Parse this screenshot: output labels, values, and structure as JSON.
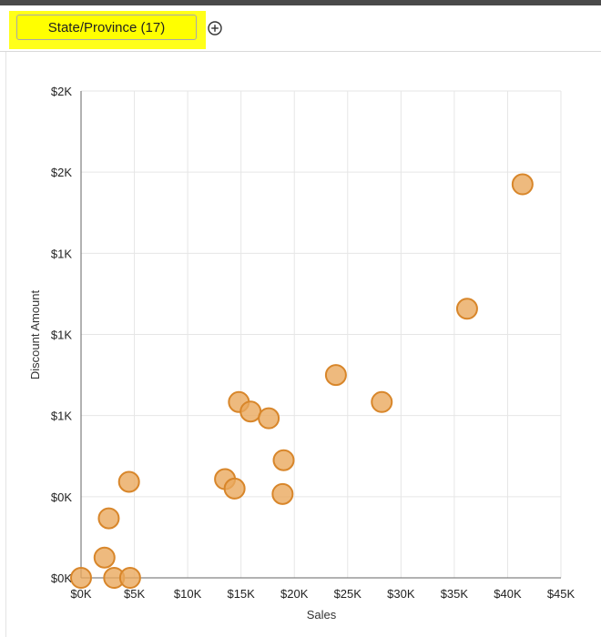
{
  "filter": {
    "pill_label": "State/Province (17)",
    "add_icon": "plus-circle-icon"
  },
  "colors": {
    "point_fill": "#eaa95e",
    "point_stroke": "#d8862a",
    "highlight": "#ffff00"
  },
  "chart_data": {
    "type": "scatter",
    "xlabel": "Sales",
    "ylabel": "Discount Amount",
    "xlim": [
      0,
      45000
    ],
    "ylim": [
      0,
      1800
    ],
    "x_ticks": [
      {
        "value": 0,
        "label": "$0K"
      },
      {
        "value": 5000,
        "label": "$5K"
      },
      {
        "value": 10000,
        "label": "$10K"
      },
      {
        "value": 15000,
        "label": "$15K"
      },
      {
        "value": 20000,
        "label": "$20K"
      },
      {
        "value": 25000,
        "label": "$25K"
      },
      {
        "value": 30000,
        "label": "$30K"
      },
      {
        "value": 35000,
        "label": "$35K"
      },
      {
        "value": 40000,
        "label": "$40K"
      },
      {
        "value": 45000,
        "label": "$45K"
      }
    ],
    "y_ticks": [
      {
        "value": 0,
        "label": "$0K"
      },
      {
        "value": 300,
        "label": "$0K"
      },
      {
        "value": 600,
        "label": "$1K"
      },
      {
        "value": 900,
        "label": "$1K"
      },
      {
        "value": 1200,
        "label": "$1K"
      },
      {
        "value": 1500,
        "label": "$2K"
      },
      {
        "value": 1800,
        "label": "$2K"
      }
    ],
    "grid": true,
    "points": [
      {
        "x": 0,
        "y": 0
      },
      {
        "x": 2200,
        "y": 75
      },
      {
        "x": 3100,
        "y": 0
      },
      {
        "x": 4600,
        "y": 0
      },
      {
        "x": 2600,
        "y": 220
      },
      {
        "x": 4500,
        "y": 355
      },
      {
        "x": 13500,
        "y": 365
      },
      {
        "x": 14400,
        "y": 330
      },
      {
        "x": 14800,
        "y": 650
      },
      {
        "x": 15900,
        "y": 615
      },
      {
        "x": 17600,
        "y": 590
      },
      {
        "x": 19000,
        "y": 435
      },
      {
        "x": 18900,
        "y": 310
      },
      {
        "x": 23900,
        "y": 750
      },
      {
        "x": 28200,
        "y": 650
      },
      {
        "x": 36200,
        "y": 995
      },
      {
        "x": 41400,
        "y": 1455
      }
    ]
  }
}
